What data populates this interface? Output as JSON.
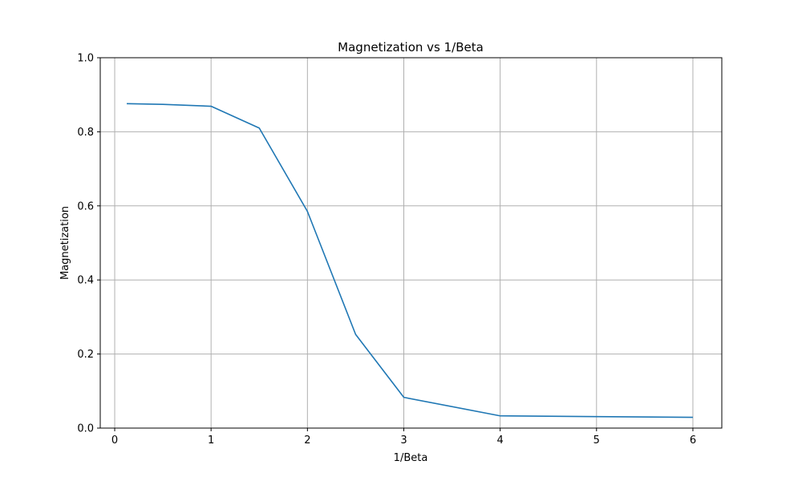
{
  "chart_data": {
    "type": "line",
    "title": "Magnetization vs 1/Beta",
    "xlabel": "1/Beta",
    "ylabel": "Magnetization",
    "xlim": [
      -0.15,
      6.3
    ],
    "ylim": [
      0.0,
      1.0
    ],
    "xticks": [
      0,
      1,
      2,
      3,
      4,
      5,
      6
    ],
    "yticks": [
      0.0,
      0.2,
      0.4,
      0.6,
      0.8,
      1.0
    ],
    "xtick_labels": [
      "0",
      "1",
      "2",
      "3",
      "4",
      "5",
      "6"
    ],
    "ytick_labels": [
      "0.0",
      "0.2",
      "0.4",
      "0.6",
      "0.8",
      "1.0"
    ],
    "grid": true,
    "series": [
      {
        "color": "#1f77b4",
        "x": [
          0.125,
          0.5,
          1.0,
          1.5,
          2.0,
          2.5,
          3.0,
          4.0,
          5.0,
          6.0
        ],
        "y": [
          0.876,
          0.874,
          0.869,
          0.81,
          0.585,
          0.253,
          0.083,
          0.033,
          0.031,
          0.029
        ]
      }
    ]
  }
}
